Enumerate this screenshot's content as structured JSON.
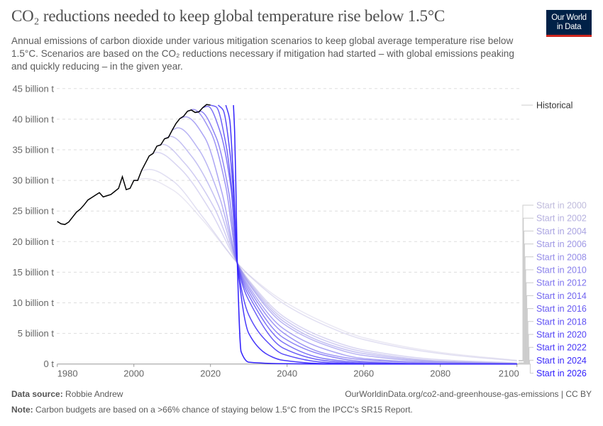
{
  "header": {
    "title": "CO₂ reductions needed to keep global temperature rise below 1.5°C",
    "subtitle": "Annual emissions of carbon dioxide under various mitigation scenarios to keep global average temperature rise below 1.5°C. Scenarios are based on the CO₂ reductions necessary if mitigation had started – with global emissions peaking and quickly reducing – in the given year.",
    "logo_line1": "Our World",
    "logo_line2": "in Data"
  },
  "footer": {
    "source_label": "Data source:",
    "source_value": "Robbie Andrew",
    "url": "OurWorldinData.org/co2-and-greenhouse-gas-emissions | CC BY",
    "note_label": "Note:",
    "note_value": "Carbon budgets are based on a >66% chance of staying below 1.5°C from the IPCC's SR15 Report."
  },
  "chart_data": {
    "type": "line",
    "title": "CO₂ reductions needed to keep global temperature rise below 1.5°C",
    "xlim": [
      1980,
      2100
    ],
    "ylim": [
      0,
      45
    ],
    "x_ticks": [
      1980,
      2000,
      2020,
      2040,
      2060,
      2080,
      2100
    ],
    "x_tick_labels": [
      "1980",
      "2000",
      "2020",
      "2040",
      "2060",
      "2080",
      "2100"
    ],
    "y_ticks": [
      0,
      5,
      10,
      15,
      20,
      25,
      30,
      35,
      40,
      45
    ],
    "y_tick_labels": [
      "0 t",
      "5 billion t",
      "10 billion t",
      "15 billion t",
      "20 billion t",
      "25 billion t",
      "30 billion t",
      "35 billion t",
      "40 billion t",
      "45 billion t"
    ],
    "grid": "horizontal dashed",
    "legend_placement": "right, line labels",
    "historical": {
      "name": "Historical",
      "color": "#000000",
      "points": [
        [
          1980,
          23.3
        ],
        [
          1981,
          22.9
        ],
        [
          1982,
          22.8
        ],
        [
          1983,
          23.2
        ],
        [
          1984,
          24.0
        ],
        [
          1985,
          24.8
        ],
        [
          1986,
          25.3
        ],
        [
          1987,
          26.0
        ],
        [
          1988,
          26.8
        ],
        [
          1989,
          27.2
        ],
        [
          1990,
          27.6
        ],
        [
          1991,
          28.0
        ],
        [
          1992,
          27.3
        ],
        [
          1993,
          27.5
        ],
        [
          1994,
          27.7
        ],
        [
          1995,
          28.2
        ],
        [
          1996,
          28.7
        ],
        [
          1997,
          30.6
        ],
        [
          1998,
          28.5
        ],
        [
          1999,
          28.7
        ],
        [
          2000,
          30.0
        ],
        [
          2001,
          30.0
        ],
        [
          2002,
          31.6
        ],
        [
          2003,
          32.8
        ],
        [
          2004,
          34.0
        ],
        [
          2005,
          34.4
        ],
        [
          2006,
          35.6
        ],
        [
          2007,
          35.8
        ],
        [
          2008,
          36.8
        ],
        [
          2009,
          37.0
        ],
        [
          2010,
          38.2
        ],
        [
          2011,
          39.3
        ],
        [
          2012,
          40.1
        ],
        [
          2013,
          40.5
        ],
        [
          2014,
          41.3
        ],
        [
          2015,
          41.5
        ],
        [
          2016,
          41.1
        ],
        [
          2017,
          41.2
        ],
        [
          2018,
          41.9
        ],
        [
          2019,
          42.4
        ],
        [
          2020,
          42.3
        ]
      ]
    },
    "series": [
      {
        "name": "Start in 2000",
        "color": "#bfbbdc",
        "points": [
          [
            2000,
            30.0
          ],
          [
            2003,
            30.3
          ],
          [
            2010,
            28.5
          ],
          [
            2018,
            23.5
          ],
          [
            2027,
            16.5
          ],
          [
            2030,
            14.6
          ],
          [
            2039,
            10.3
          ],
          [
            2050,
            6.7
          ],
          [
            2060,
            4.3
          ],
          [
            2080,
            1.9
          ],
          [
            2100,
            0.6
          ]
        ]
      },
      {
        "name": "Start in 2002",
        "color": "#b5b0df",
        "points": [
          [
            2002,
            31.6
          ],
          [
            2004,
            31.8
          ],
          [
            2010,
            30.0
          ],
          [
            2018,
            24.0
          ],
          [
            2027,
            16.5
          ],
          [
            2030,
            14.5
          ],
          [
            2039,
            9.9
          ],
          [
            2050,
            6.3
          ],
          [
            2060,
            4.0
          ],
          [
            2080,
            1.7
          ],
          [
            2100,
            0.5
          ]
        ]
      },
      {
        "name": "Start in 2004",
        "color": "#aaa4e2",
        "points": [
          [
            2005,
            34.4
          ],
          [
            2006,
            34.6
          ],
          [
            2012,
            32.0
          ],
          [
            2020,
            25.0
          ],
          [
            2027,
            16.5
          ],
          [
            2030,
            13.7
          ],
          [
            2039,
            7.8
          ],
          [
            2050,
            4.2
          ],
          [
            2060,
            2.3
          ],
          [
            2080,
            0.7
          ],
          [
            2100,
            0.2
          ]
        ]
      },
      {
        "name": "Start in 2006",
        "color": "#9f98e5",
        "points": [
          [
            2006,
            35.6
          ],
          [
            2007.5,
            35.9
          ],
          [
            2013,
            33.0
          ],
          [
            2021,
            25.5
          ],
          [
            2027,
            16.5
          ],
          [
            2030,
            13.5
          ],
          [
            2039,
            7.4
          ],
          [
            2050,
            3.8
          ],
          [
            2060,
            2.0
          ],
          [
            2080,
            0.5
          ],
          [
            2100,
            0.1
          ]
        ]
      },
      {
        "name": "Start in 2008",
        "color": "#948ce8",
        "points": [
          [
            2008,
            36.8
          ],
          [
            2009.5,
            37.2
          ],
          [
            2015,
            34.0
          ],
          [
            2022,
            26.0
          ],
          [
            2027,
            16.5
          ],
          [
            2030,
            13.3
          ],
          [
            2039,
            7.0
          ],
          [
            2050,
            3.4
          ],
          [
            2060,
            1.7
          ],
          [
            2080,
            0.4
          ],
          [
            2100,
            0.1
          ]
        ]
      },
      {
        "name": "Start in 2010",
        "color": "#8980eb",
        "points": [
          [
            2010,
            38.2
          ],
          [
            2011.5,
            38.6
          ],
          [
            2017,
            35.0
          ],
          [
            2022.5,
            27.0
          ],
          [
            2027,
            16.5
          ],
          [
            2030,
            13.1
          ],
          [
            2039,
            6.6
          ],
          [
            2050,
            3.1
          ],
          [
            2060,
            1.4
          ],
          [
            2080,
            0.3
          ],
          [
            2100,
            0.05
          ]
        ]
      },
      {
        "name": "Start in 2012",
        "color": "#7e73ee",
        "points": [
          [
            2012,
            40.1
          ],
          [
            2013.5,
            40.4
          ],
          [
            2018.5,
            37.0
          ],
          [
            2023,
            28.0
          ],
          [
            2027,
            16.5
          ],
          [
            2030,
            12.7
          ],
          [
            2039,
            5.8
          ],
          [
            2050,
            2.4
          ],
          [
            2060,
            0.9
          ],
          [
            2080,
            0.2
          ],
          [
            2100,
            0
          ]
        ]
      },
      {
        "name": "Start in 2014",
        "color": "#7367f0",
        "points": [
          [
            2014,
            41.3
          ],
          [
            2015.5,
            41.6
          ],
          [
            2020,
            38.0
          ],
          [
            2024,
            29.0
          ],
          [
            2027,
            16.5
          ],
          [
            2030,
            12.3
          ],
          [
            2039,
            5.1
          ],
          [
            2050,
            1.7
          ],
          [
            2060,
            0.7
          ],
          [
            2080,
            0.1
          ],
          [
            2100,
            0
          ]
        ]
      },
      {
        "name": "Start in 2016",
        "color": "#685bf2",
        "points": [
          [
            2016,
            41.1
          ],
          [
            2017.3,
            41.3
          ],
          [
            2021.5,
            37.0
          ],
          [
            2024.8,
            28.0
          ],
          [
            2027,
            16.5
          ],
          [
            2030,
            11.8
          ],
          [
            2039,
            4.3
          ],
          [
            2050,
            1.4
          ],
          [
            2060,
            0.4
          ],
          [
            2080,
            0
          ],
          [
            2100,
            0
          ]
        ]
      },
      {
        "name": "Start in 2018",
        "color": "#5d4ff4",
        "points": [
          [
            2018,
            41.9
          ],
          [
            2019.3,
            42.1
          ],
          [
            2022.5,
            38.0
          ],
          [
            2025.3,
            29.0
          ],
          [
            2027,
            16.5
          ],
          [
            2030,
            11.2
          ],
          [
            2039,
            3.5
          ],
          [
            2050,
            0.85
          ],
          [
            2060,
            0.25
          ],
          [
            2080,
            0
          ],
          [
            2100,
            0
          ]
        ]
      },
      {
        "name": "Start in 2020",
        "color": "#5243f6",
        "points": [
          [
            2020,
            42.3
          ],
          [
            2021.5,
            42.0
          ],
          [
            2024,
            36.0
          ],
          [
            2025.8,
            27.0
          ],
          [
            2027,
            16.5
          ],
          [
            2030,
            10.4
          ],
          [
            2039,
            2.6
          ],
          [
            2050,
            0.55
          ],
          [
            2060,
            0.1
          ],
          [
            2080,
            0
          ],
          [
            2100,
            0
          ]
        ]
      },
      {
        "name": "Start in 2022",
        "color": "#4737f8",
        "points": [
          [
            2022,
            42.3
          ],
          [
            2023.3,
            41.5
          ],
          [
            2025,
            35.0
          ],
          [
            2026.3,
            25.0
          ],
          [
            2027,
            16.5
          ],
          [
            2030,
            8.0
          ],
          [
            2035,
            3.5
          ],
          [
            2039,
            1.6
          ],
          [
            2050,
            0.25
          ],
          [
            2060,
            0
          ],
          [
            2100,
            0
          ]
        ]
      },
      {
        "name": "Start in 2024",
        "color": "#3c2bfa",
        "points": [
          [
            2024,
            42.3
          ],
          [
            2025,
            40.0
          ],
          [
            2026,
            30.0
          ],
          [
            2027,
            16.5
          ],
          [
            2030,
            5.0
          ],
          [
            2035,
            1.5
          ],
          [
            2039,
            0.6
          ],
          [
            2050,
            0.05
          ],
          [
            2060,
            0
          ],
          [
            2100,
            0
          ]
        ]
      },
      {
        "name": "Start in 2026",
        "color": "#3120fc",
        "points": [
          [
            2026,
            42.3
          ],
          [
            2026.3,
            38.0
          ],
          [
            2026.6,
            30.0
          ],
          [
            2027,
            16.5
          ],
          [
            2028,
            2.0
          ],
          [
            2030,
            0.3
          ],
          [
            2039,
            0.05
          ],
          [
            2050,
            0
          ],
          [
            2100,
            0
          ]
        ]
      }
    ]
  }
}
